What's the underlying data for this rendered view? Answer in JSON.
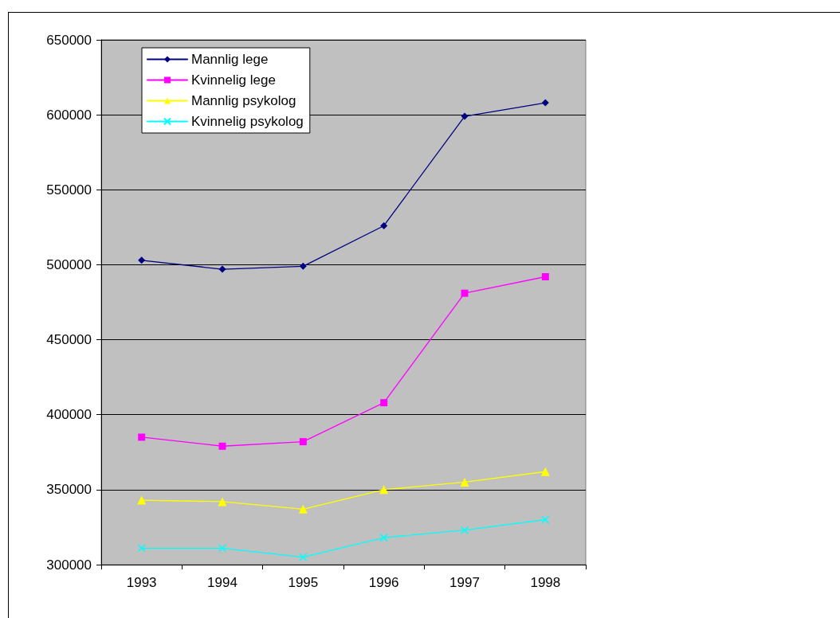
{
  "chart_data": {
    "type": "line",
    "categories": [
      "1993",
      "1994",
      "1995",
      "1996",
      "1997",
      "1998"
    ],
    "series": [
      {
        "name": "Mannlig lege",
        "color": "#000080",
        "marker": "diamond",
        "values": [
          503000,
          497000,
          499000,
          526000,
          599000,
          608000
        ]
      },
      {
        "name": "Kvinnelig lege",
        "color": "#ff00ff",
        "marker": "square",
        "values": [
          385000,
          379000,
          382000,
          408000,
          481000,
          492000
        ]
      },
      {
        "name": "Mannlig psykolog",
        "color": "#ffff00",
        "marker": "triangle",
        "values": [
          343000,
          342000,
          337000,
          350000,
          355000,
          362000
        ]
      },
      {
        "name": "Kvinnelig psykolog",
        "color": "#00ffff",
        "marker": "cross",
        "values": [
          311000,
          311000,
          305000,
          318000,
          323000,
          330000
        ]
      }
    ],
    "ylim": [
      300000,
      650000
    ],
    "yticks": [
      300000,
      350000,
      400000,
      450000,
      500000,
      550000,
      600000,
      650000
    ],
    "grid": "y",
    "legend": "top left",
    "line_style": "solid"
  }
}
